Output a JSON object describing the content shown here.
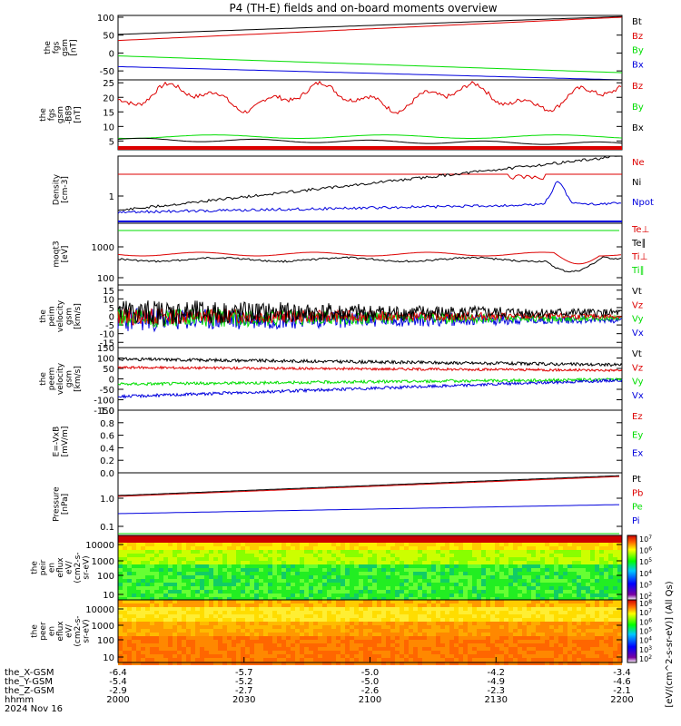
{
  "title": "P4 (TH-E) fields and on-board moments overview",
  "colors": {
    "black": "#000000",
    "red": "#dd0000",
    "green": "#00dd00",
    "blue": "#0000dd"
  },
  "chart_data": [
    {
      "type": "line",
      "id": "fgs_gsm",
      "ylabel_lines": [
        "the",
        "fgs",
        "gsm",
        "[nT]"
      ],
      "yticks": [
        -50,
        0,
        50,
        100
      ],
      "ylim": [
        -75,
        105
      ],
      "series": [
        {
          "name": "Bt",
          "color": "#000000",
          "start": 52,
          "end": 102
        },
        {
          "name": "Bz",
          "color": "#dd0000",
          "start": 35,
          "end": 100
        },
        {
          "name": "By",
          "color": "#00dd00",
          "start": -8,
          "end": -55
        },
        {
          "name": "Bx",
          "color": "#0000dd",
          "start": -38,
          "end": -75
        }
      ]
    },
    {
      "type": "line",
      "id": "fgs_gsm_zoom",
      "ylabel_lines": [
        "the",
        "fgs",
        "gsm",
        "-B89",
        "[nT]"
      ],
      "yticks": [
        5,
        10,
        15,
        20,
        25
      ],
      "ylim": [
        2,
        26
      ],
      "series": [
        {
          "name": "Bz",
          "color": "#dd0000"
        },
        {
          "name": "By",
          "color": "#00dd00"
        },
        {
          "name": "Bx",
          "color": "#000000"
        }
      ]
    },
    {
      "type": "line",
      "id": "density",
      "ylabel_lines": [
        "Density",
        "[cm-3]"
      ],
      "yticks": [
        "1"
      ],
      "log": true,
      "series": [
        {
          "name": "Ne",
          "color": "#dd0000"
        },
        {
          "name": "Ni",
          "color": "#000000"
        },
        {
          "name": "Npot",
          "color": "#0000dd"
        }
      ]
    },
    {
      "type": "line",
      "id": "temperature",
      "ylabel_lines": [
        "moqt3",
        "[eV]"
      ],
      "yticks": [
        "100",
        "1000"
      ],
      "log": true,
      "series": [
        {
          "name": "Te⊥",
          "color": "#dd0000"
        },
        {
          "name": "Te∥",
          "color": "#000000"
        },
        {
          "name": "Ti⊥",
          "color": "#dd0000"
        },
        {
          "name": "Ti∥",
          "color": "#00dd00"
        }
      ]
    },
    {
      "type": "line",
      "id": "peim_velocity",
      "ylabel_lines": [
        "the",
        "peim",
        "velocity",
        "gsm",
        "[km/s]"
      ],
      "yticks": [
        -15,
        -10,
        -5,
        0,
        5,
        10,
        15
      ],
      "ylim": [
        -18,
        18
      ],
      "series": [
        {
          "name": "Vt",
          "color": "#000000"
        },
        {
          "name": "Vz",
          "color": "#dd0000"
        },
        {
          "name": "Vy",
          "color": "#00dd00"
        },
        {
          "name": "Vx",
          "color": "#0000dd"
        }
      ]
    },
    {
      "type": "line",
      "id": "peem_velocity",
      "ylabel_lines": [
        "the",
        "peem",
        "velocity",
        "gsm",
        "[km/s]"
      ],
      "yticks": [
        -150,
        -100,
        -50,
        0,
        50,
        100,
        150
      ],
      "ylim": [
        -150,
        150
      ],
      "series": [
        {
          "name": "Vt",
          "color": "#000000"
        },
        {
          "name": "Vz",
          "color": "#dd0000"
        },
        {
          "name": "Vy",
          "color": "#00dd00"
        },
        {
          "name": "Vx",
          "color": "#0000dd"
        }
      ]
    },
    {
      "type": "line",
      "id": "efield",
      "ylabel_lines": [
        "E=-VxB",
        "[mV/m]"
      ],
      "yticks": [
        "0.0",
        "0.2",
        "0.4",
        "0.6",
        "0.8",
        "1.0"
      ],
      "ylim": [
        0,
        1
      ],
      "series": [
        {
          "name": "Ez",
          "color": "#dd0000"
        },
        {
          "name": "Ey",
          "color": "#00dd00"
        },
        {
          "name": "Ex",
          "color": "#0000dd"
        }
      ]
    },
    {
      "type": "line",
      "id": "pressure",
      "ylabel_lines": [
        "Pressure",
        "[nPa]"
      ],
      "yticks": [
        "0.1",
        "1.0"
      ],
      "log": true,
      "series": [
        {
          "name": "Pt",
          "color": "#000000"
        },
        {
          "name": "Pb",
          "color": "#dd0000"
        },
        {
          "name": "Pe",
          "color": "#00dd00"
        },
        {
          "name": "Pi",
          "color": "#0000dd"
        }
      ]
    },
    {
      "type": "heatmap",
      "id": "peir_eflux",
      "ylabel_lines": [
        "the",
        "peir",
        "en",
        "eflux",
        "eV/",
        "(cm2-s-",
        "sr-eV)"
      ],
      "yticks": [
        "10",
        "100",
        "1000",
        "10000"
      ]
    },
    {
      "type": "heatmap",
      "id": "peer_eflux",
      "ylabel_lines": [
        "the",
        "peer",
        "en",
        "eflux",
        "eV/",
        "(cm2-s-",
        "sr-eV)"
      ],
      "yticks": [
        "10",
        "100",
        "1000",
        "10000"
      ]
    }
  ],
  "colorbars": [
    {
      "ticks": [
        "10^2",
        "10^3",
        "10^4",
        "10^5",
        "10^6",
        "10^7"
      ]
    },
    {
      "ticks": [
        "10^2",
        "10^3",
        "10^4",
        "10^5",
        "10^6",
        "10^7",
        "10^8"
      ]
    }
  ],
  "colorbar_label": "[eV/(cm^2-s-sr-eV)] (All Qs)",
  "x_axis": {
    "row_labels": [
      "the_X-GSM",
      "the_Y-GSM",
      "the_Z-GSM",
      "hhmm",
      "2024 Nov 16"
    ],
    "columns": [
      {
        "x": "-6.4",
        "y": "-5.4",
        "z": "-2.9",
        "hhmm": "2000"
      },
      {
        "x": "-5.7",
        "y": "-5.2",
        "z": "-2.7",
        "hhmm": "2030"
      },
      {
        "x": "-5.0",
        "y": "-5.0",
        "z": "-2.6",
        "hhmm": "2100"
      },
      {
        "x": "-4.2",
        "y": "-4.9",
        "z": "-2.3",
        "hhmm": "2130"
      },
      {
        "x": "-3.4",
        "y": "-4.6",
        "z": "-2.1",
        "hhmm": "2200"
      }
    ]
  }
}
